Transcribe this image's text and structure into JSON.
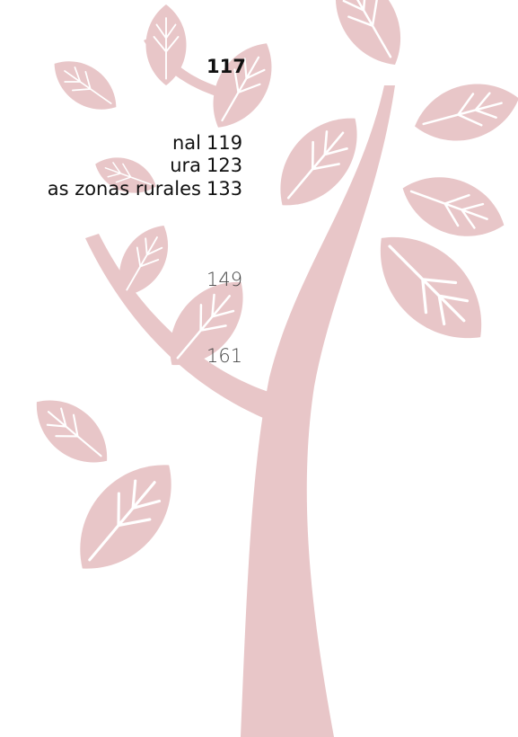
{
  "toc": {
    "entries": [
      {
        "page": "117"
      },
      {
        "title": "nal",
        "page": "119"
      },
      {
        "title": "ura",
        "page": "123"
      },
      {
        "title": "as zonas rurales",
        "page": "133"
      },
      {
        "page": "149"
      },
      {
        "page": "161"
      }
    ]
  }
}
